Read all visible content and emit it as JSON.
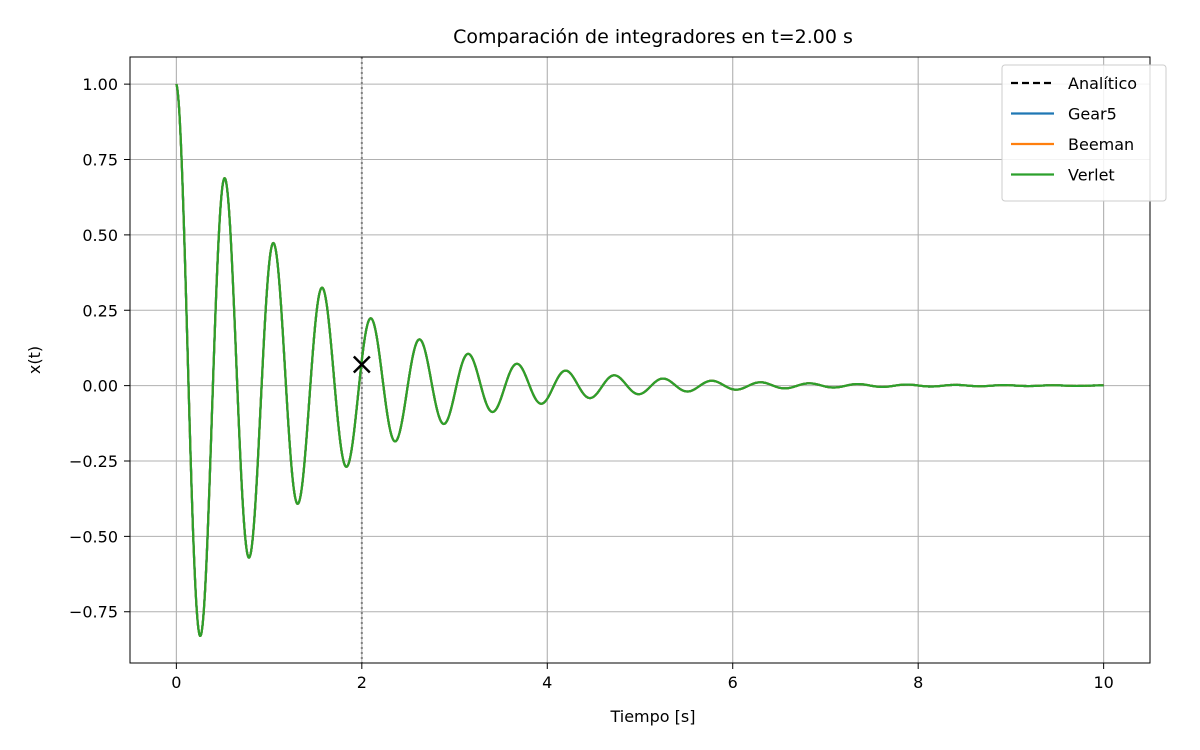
{
  "chart_data": {
    "type": "line",
    "title": "Comparación de integradores en t=2.00 s",
    "xlabel": "Tiempo [s]",
    "ylabel": "x(t)",
    "xlim": [
      -0.5,
      10.5
    ],
    "ylim": [
      -0.92,
      1.09
    ],
    "xticks": [
      0,
      2,
      4,
      6,
      8,
      10
    ],
    "xtick_labels": [
      "0",
      "2",
      "4",
      "6",
      "8",
      "10"
    ],
    "yticks": [
      -0.75,
      -0.5,
      -0.25,
      0.0,
      0.25,
      0.5,
      0.75,
      1.0
    ],
    "ytick_labels": [
      "−0.75",
      "−0.50",
      "−0.25",
      "0.00",
      "0.25",
      "0.50",
      "0.75",
      "1.00"
    ],
    "grid": true,
    "legend_position": "top-right",
    "marker_time": 2.0,
    "current_point": {
      "x": 2.0,
      "y": 0.07,
      "marker": "x"
    },
    "series": [
      {
        "name": "Analítico",
        "color": "#000000",
        "dash": "dashed",
        "model": {
          "A": 1.0,
          "gamma": 0.7143,
          "omega": 11.96
        },
        "x_range": [
          0,
          10
        ],
        "samples": 2001
      },
      {
        "name": "Gear5",
        "color": "#1f77b4",
        "dash": "solid",
        "model": {
          "A": 1.0,
          "gamma": 0.7143,
          "omega": 11.96
        },
        "x_range": [
          0,
          10
        ],
        "samples": 2001
      },
      {
        "name": "Beeman",
        "color": "#ff7f0e",
        "dash": "solid",
        "model": {
          "A": 1.0,
          "gamma": 0.7143,
          "omega": 11.96
        },
        "x_range": [
          0,
          10
        ],
        "samples": 2001
      },
      {
        "name": "Verlet",
        "color": "#2ca02c",
        "dash": "solid",
        "model": {
          "A": 1.0,
          "gamma": 0.7143,
          "omega": 11.96
        },
        "x_range": [
          0,
          10
        ],
        "samples": 2001
      }
    ]
  }
}
